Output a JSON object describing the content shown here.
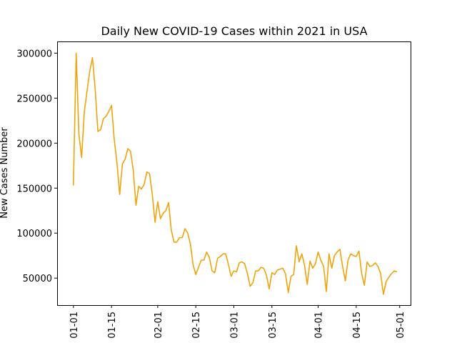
{
  "chart_data": {
    "type": "line",
    "title": "Daily New COVID-19 Cases within 2021 in USA",
    "xlabel": "",
    "ylabel": "New Cases Number",
    "x_start": "2021-01-01",
    "xlim": [
      "2020-12-26",
      "2021-05-05"
    ],
    "ylim": [
      20000,
      313000
    ],
    "grid": false,
    "color": "#f0a30a",
    "x_ticks": [
      {
        "date": "2021-01-01",
        "label": "01-01"
      },
      {
        "date": "2021-01-15",
        "label": "01-15"
      },
      {
        "date": "2021-02-01",
        "label": "02-01"
      },
      {
        "date": "2021-02-15",
        "label": "02-15"
      },
      {
        "date": "2021-03-01",
        "label": "03-01"
      },
      {
        "date": "2021-03-15",
        "label": "03-15"
      },
      {
        "date": "2021-04-01",
        "label": "04-01"
      },
      {
        "date": "2021-04-15",
        "label": "04-15"
      },
      {
        "date": "2021-05-01",
        "label": "05-01"
      }
    ],
    "y_ticks": [
      {
        "value": 50000,
        "label": "50000"
      },
      {
        "value": 100000,
        "label": "100000"
      },
      {
        "value": 150000,
        "label": "150000"
      },
      {
        "value": 200000,
        "label": "200000"
      },
      {
        "value": 250000,
        "label": "250000"
      },
      {
        "value": 300000,
        "label": "300000"
      }
    ],
    "series": [
      {
        "name": "",
        "values": [
          153000,
          300000,
          210000,
          184000,
          235000,
          258000,
          280000,
          295000,
          260000,
          213000,
          215000,
          227000,
          230000,
          235000,
          242000,
          204000,
          178000,
          143000,
          177000,
          182000,
          194000,
          191000,
          170000,
          131000,
          152000,
          149000,
          154000,
          168000,
          166000,
          143000,
          112000,
          135000,
          116000,
          122000,
          125000,
          134000,
          103000,
          90000,
          90000,
          95000,
          95000,
          105000,
          100000,
          88000,
          65000,
          54000,
          62000,
          70000,
          70000,
          79000,
          73000,
          58000,
          56000,
          72000,
          74000,
          77000,
          77000,
          65000,
          52000,
          58000,
          57000,
          67000,
          68000,
          66000,
          55000,
          41000,
          45000,
          58000,
          58000,
          62000,
          61000,
          53000,
          38000,
          56000,
          54000,
          59000,
          60000,
          61000,
          55000,
          34000,
          52000,
          54000,
          86000,
          68000,
          77000,
          64000,
          43000,
          69000,
          61000,
          66000,
          79000,
          70000,
          63000,
          35000,
          77000,
          61000,
          75000,
          79000,
          82000,
          63000,
          47000,
          70000,
          77000,
          75000,
          74000,
          80000,
          55000,
          42000,
          68000,
          63000,
          64000,
          67000,
          63000,
          55000,
          32000,
          46000,
          51000,
          55000,
          58000,
          57000
        ]
      }
    ]
  }
}
